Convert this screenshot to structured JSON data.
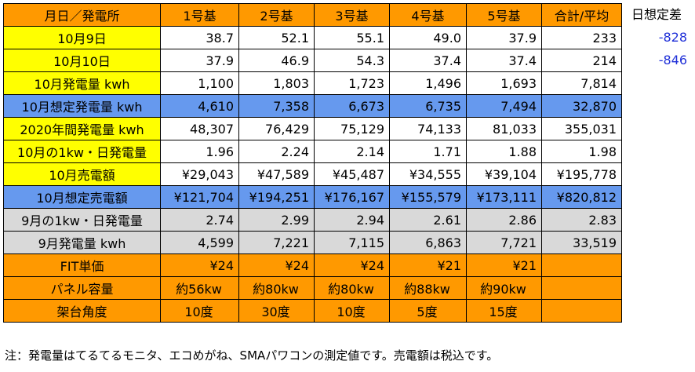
{
  "table": {
    "header": [
      "月日／発電所",
      "1号基",
      "2号基",
      "3号基",
      "4号基",
      "5号基",
      "合計/平均"
    ],
    "rows": [
      {
        "label": "10月9日",
        "style": "yellow",
        "cells": [
          "38.7",
          "52.1",
          "55.1",
          "49.0",
          "37.9",
          "233"
        ]
      },
      {
        "label": "10月10日",
        "style": "yellow",
        "cells": [
          "37.9",
          "46.9",
          "54.3",
          "37.4",
          "37.4",
          "214"
        ]
      },
      {
        "label": "10月発電量 kwh",
        "style": "yellow",
        "cells": [
          "1,100",
          "1,803",
          "1,723",
          "1,496",
          "1,693",
          "7,814"
        ]
      },
      {
        "label": "10月想定発電量 kwh",
        "style": "blue",
        "cells": [
          "4,610",
          "7,358",
          "6,673",
          "6,735",
          "7,494",
          "32,870"
        ]
      },
      {
        "label": "2020年間発電量 kwh",
        "style": "yellow",
        "cells": [
          "48,307",
          "76,429",
          "75,129",
          "74,133",
          "81,033",
          "355,031"
        ]
      },
      {
        "label": "10月の1kw・日発電量",
        "style": "yellow",
        "cells": [
          "1.96",
          "2.24",
          "2.14",
          "1.71",
          "1.88",
          "1.98"
        ]
      },
      {
        "label": "10月売電額",
        "style": "yellow",
        "cells": [
          "¥29,043",
          "¥47,589",
          "¥45,487",
          "¥34,555",
          "¥39,104",
          "¥195,778"
        ]
      },
      {
        "label": "10月想定売電額",
        "style": "blue",
        "cells": [
          "¥121,704",
          "¥194,251",
          "¥176,167",
          "¥155,579",
          "¥173,111",
          "¥820,812"
        ]
      },
      {
        "label": "9月の1kw・日発電量",
        "style": "gray",
        "cells": [
          "2.74",
          "2.99",
          "2.94",
          "2.61",
          "2.86",
          "2.83"
        ]
      },
      {
        "label": "9月発電量 kwh",
        "style": "gray",
        "cells": [
          "4,599",
          "7,221",
          "7,115",
          "6,863",
          "7,721",
          "33,519"
        ]
      },
      {
        "label": "FIT単価",
        "style": "orange",
        "cells": [
          "¥24",
          "¥24",
          "¥24",
          "¥21",
          "¥21",
          ""
        ]
      },
      {
        "label": "パネル容量",
        "style": "orange",
        "center": true,
        "cells": [
          "約56kw",
          "約80kw",
          "約80kw",
          "約88kw",
          "約90kw",
          ""
        ]
      },
      {
        "label": "架台角度",
        "style": "orange",
        "center": true,
        "cells": [
          "10度",
          "30度",
          "10度",
          "5度",
          "15度",
          ""
        ]
      }
    ]
  },
  "side": {
    "title": "日想定差",
    "values": [
      "-828",
      "-846"
    ]
  },
  "note": "注：発電量はてるてるモニタ、エコめがね、SMAパワコンの測定値です。売電額は税込です。",
  "colors": {
    "yellow": "#ffff00",
    "orange": "#ff9900",
    "blue": "#6699ee",
    "gray": "#d9d9d9",
    "negative_text": "#1f2fd8"
  }
}
